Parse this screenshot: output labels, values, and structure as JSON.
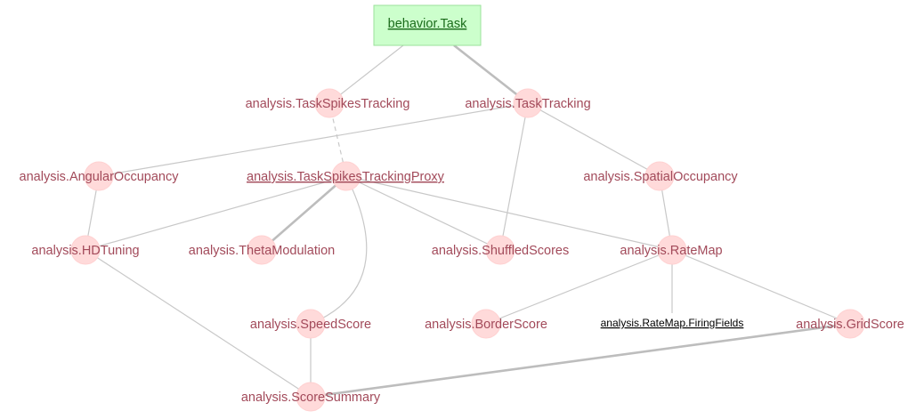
{
  "diagram": {
    "root": {
      "label": "behavior.Task"
    },
    "nodes": {
      "task_spikes_tracking": "analysis.TaskSpikesTracking",
      "task_tracking": "analysis.TaskTracking",
      "angular_occupancy": "analysis.AngularOccupancy",
      "task_spikes_tracking_proxy": "analysis.TaskSpikesTrackingProxy",
      "spatial_occupancy": "analysis.SpatialOccupancy",
      "hd_tuning": "analysis.HDTuning",
      "theta_modulation": "analysis.ThetaModulation",
      "shuffled_scores": "analysis.ShuffledScores",
      "rate_map": "analysis.RateMap",
      "speed_score": "analysis.SpeedScore",
      "border_score": "analysis.BorderScore",
      "rate_map_firing_fields": "analysis.RateMap.FiringFields",
      "grid_score": "analysis.GridScore",
      "score_summary": "analysis.ScoreSummary"
    },
    "colors": {
      "node_fill": "#ffdada",
      "node_text": "#a24a5a",
      "root_fill": "#ccffcc",
      "root_text": "#1a6b1a",
      "edge": "#c8c8c8"
    }
  }
}
